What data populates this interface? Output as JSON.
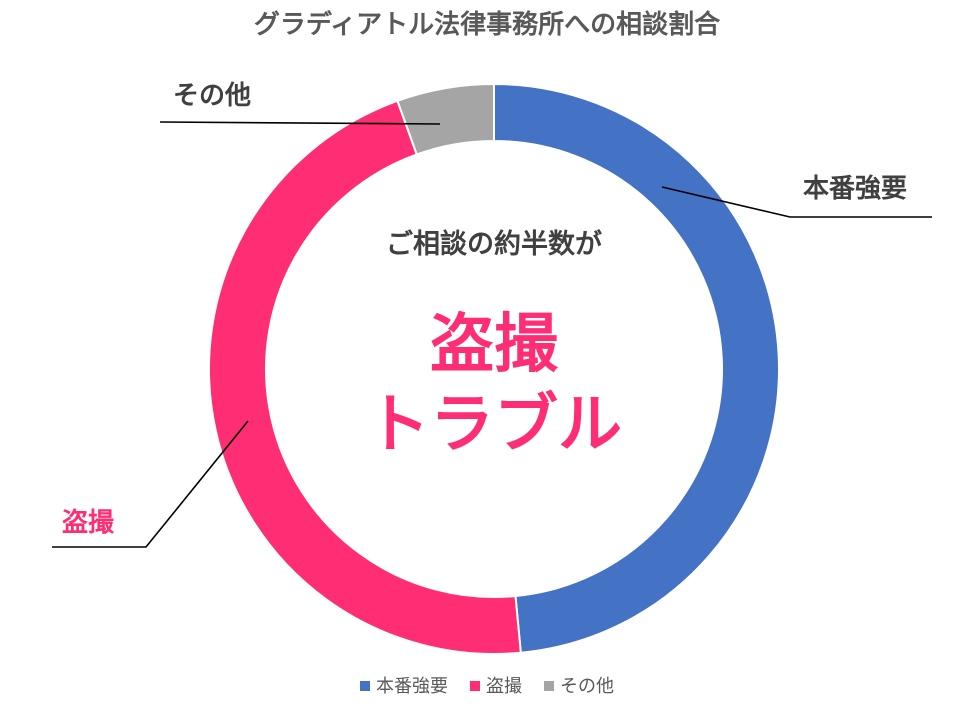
{
  "chart_data": {
    "type": "pie",
    "variant": "donut",
    "title": "グラディアトル法律事務所への相談割合",
    "categories": [
      "本番強要",
      "盗撮",
      "その他"
    ],
    "values": [
      48.5,
      46.0,
      5.5
    ],
    "unit": "%",
    "colors": [
      "#4472C4",
      "#FF2D74",
      "#A5A5A5"
    ],
    "label_colors": [
      "#404040",
      "#FF2D74",
      "#404040"
    ],
    "legend_position": "bottom",
    "center_text": {
      "subtitle": "ご相談の約半数が",
      "line1": "盗撮",
      "line2": "トラブル",
      "highlight_color": "#FF2D74"
    }
  }
}
